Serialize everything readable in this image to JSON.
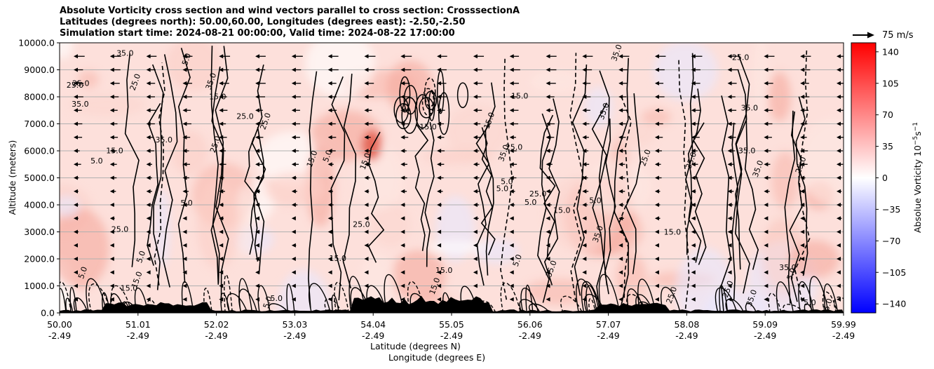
{
  "title_lines": [
    "Absolute Vorticity cross section and wind vectors parallel to cross section: CrosssectionA",
    "Latitudes (degrees north): 50.00,60.00, Longitudes (degrees east): -2.50,-2.50",
    "Simulation start time: 2024-08-21 00:00:00, Valid time: 2024-08-22 17:00:00"
  ],
  "chart_data": {
    "type": "heatmap",
    "ylabel": "Altitude (meters)",
    "xlabel_lat": "Latitude (degrees N)",
    "xlabel_lon": "Longitude (degrees E)",
    "ylim": [
      0,
      10000
    ],
    "y_ticks": [
      "0.0",
      "1000.0",
      "2000.0",
      "3000.0",
      "4000.0",
      "5000.0",
      "6000.0",
      "7000.0",
      "8000.0",
      "9000.0",
      "10000.0"
    ],
    "x_ticks": [
      {
        "lat": "50.00",
        "lon": "-2.49"
      },
      {
        "lat": "51.01",
        "lon": "-2.49"
      },
      {
        "lat": "52.02",
        "lon": "-2.49"
      },
      {
        "lat": "53.03",
        "lon": "-2.49"
      },
      {
        "lat": "54.04",
        "lon": "-2.49"
      },
      {
        "lat": "55.05",
        "lon": "-2.49"
      },
      {
        "lat": "56.06",
        "lon": "-2.49"
      },
      {
        "lat": "57.07",
        "lon": "-2.49"
      },
      {
        "lat": "58.08",
        "lon": "-2.49"
      },
      {
        "lat": "59.09",
        "lon": "-2.49"
      },
      {
        "lat": "59.99",
        "lon": "-2.49"
      }
    ],
    "grid": "horizontal",
    "colorbar": {
      "label": "Absolue Vorticity 10$^{-5}$s$^{-1}$",
      "label_main": "Absolue Vorticity 10",
      "label_exp1": "−5",
      "label_mid": "s",
      "label_exp2": "−1",
      "range": [
        -150,
        150
      ],
      "ticks": [
        "140",
        "105",
        "70",
        "35",
        "0",
        "−35",
        "−70",
        "−105",
        "−140"
      ],
      "tick_values": [
        140,
        105,
        70,
        35,
        0,
        -35,
        -70,
        -105,
        -140
      ],
      "colormap": "bwr"
    },
    "contour_labels": [
      "5.0",
      "15.0",
      "25.0",
      "35.0"
    ],
    "wind_reference": {
      "value": 75,
      "label": "75 m/s"
    },
    "wind_direction": "southward (pointing left) aloft"
  }
}
